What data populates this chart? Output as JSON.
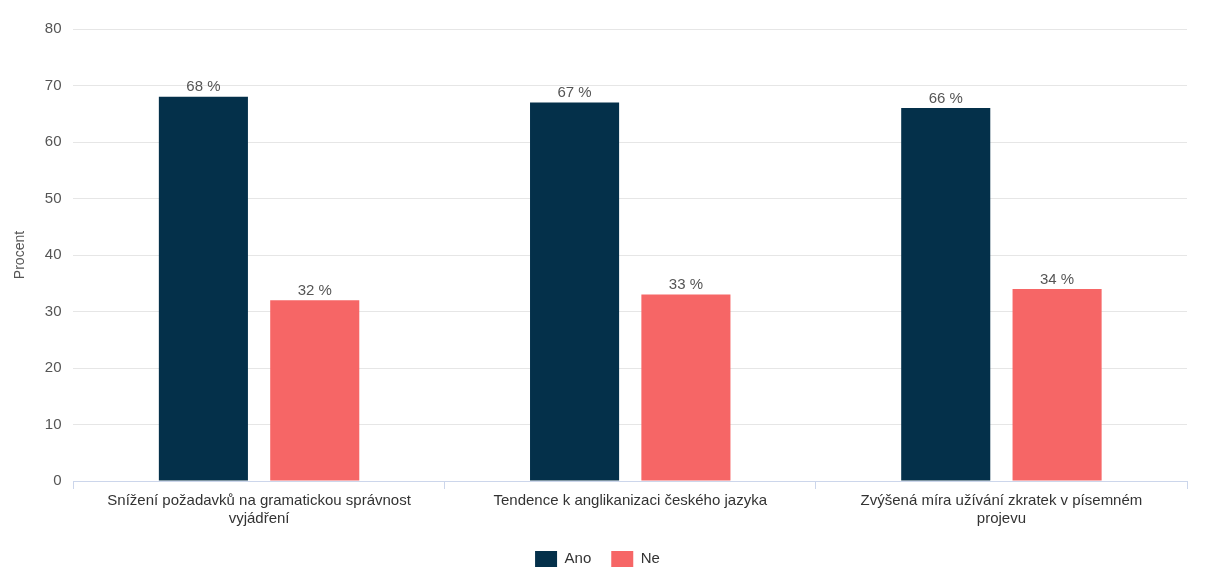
{
  "chart_data": {
    "type": "bar",
    "ylabel": "Procent",
    "categories": [
      "Snížení požadavků na gramatickou správnost vyjádření",
      "Tendence k anglikanizaci českého jazyka",
      "Zvýšená míra užívání zkratek v písemném projevu"
    ],
    "series": [
      {
        "name": "Ano",
        "color": "#04304a",
        "values": [
          68,
          67,
          66
        ],
        "value_labels": [
          "68 %",
          "67 %",
          "66 %"
        ]
      },
      {
        "name": "Ne",
        "color": "#f66666",
        "values": [
          32,
          33,
          34
        ],
        "value_labels": [
          "32 %",
          "33 %",
          "34 %"
        ]
      }
    ],
    "ylim": [
      0,
      80
    ],
    "yticks": [
      0,
      10,
      20,
      30,
      40,
      50,
      60,
      70,
      80
    ],
    "grid": "y",
    "legend": "bottom"
  }
}
